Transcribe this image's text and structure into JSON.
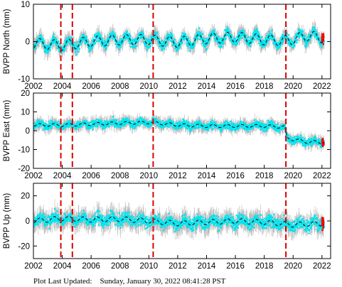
{
  "footer": {
    "label": "Plot Last Updated:",
    "timestamp": "Sunday, January 30, 2022 08:41:28 PST"
  },
  "colors": {
    "scatter": "#00e5f0",
    "error_bars": "#b8b8b8",
    "model": "#000000",
    "event_lines": "#dd0000",
    "recent_points": "#ff0000"
  },
  "chart_data": [
    {
      "type": "scatter",
      "ylabel": "BVPP North (mm)",
      "xlim": [
        2002,
        2022.6
      ],
      "ylim": [
        -10,
        10
      ],
      "yticks": [
        -10,
        0,
        10
      ],
      "xticks": [
        2002,
        2004,
        2006,
        2008,
        2010,
        2012,
        2014,
        2016,
        2018,
        2020,
        2022
      ],
      "show_xticklabels": true,
      "event_lines": [
        2003.9,
        2004.7,
        2010.3,
        2019.5
      ],
      "trend": {
        "intercept": -0.5,
        "slope": 0.03,
        "seasonal_amplitude": 1.4,
        "scatter_sd": 1.6
      },
      "series": [
        {
          "values": [
            [
              2002.0,
              -0.5
            ],
            [
              2004.0,
              -1.0
            ],
            [
              2006.0,
              0.0
            ],
            [
              2008.0,
              0.5
            ],
            [
              2010.0,
              0.5
            ],
            [
              2012.0,
              -0.2
            ],
            [
              2014.0,
              0.8
            ],
            [
              2016.0,
              1.2
            ],
            [
              2018.0,
              0.5
            ],
            [
              2019.5,
              0.2
            ],
            [
              2021.0,
              1.5
            ],
            [
              2022.1,
              1.0
            ]
          ]
        }
      ]
    },
    {
      "type": "scatter",
      "ylabel": "BVPP East (mm)",
      "xlim": [
        2002,
        2022.6
      ],
      "ylim": [
        -20,
        20
      ],
      "yticks": [
        -20,
        -10,
        0,
        10,
        20
      ],
      "xticks": [
        2002,
        2004,
        2006,
        2008,
        2010,
        2012,
        2014,
        2016,
        2018,
        2020,
        2022
      ],
      "show_xticklabels": true,
      "event_lines": [
        2003.9,
        2004.7,
        2010.3,
        2019.5
      ],
      "trend": {
        "intercept": 3.0,
        "slope": 0.0,
        "seasonal_amplitude": 0.8,
        "scatter_sd": 2.5
      },
      "series": [
        {
          "values": [
            [
              2002.0,
              3.0
            ],
            [
              2004.0,
              3.0
            ],
            [
              2006.0,
              3.5
            ],
            [
              2008.0,
              4.0
            ],
            [
              2010.0,
              4.5
            ],
            [
              2012.0,
              3.0
            ],
            [
              2014.0,
              2.5
            ],
            [
              2016.0,
              2.5
            ],
            [
              2018.0,
              2.5
            ],
            [
              2019.4,
              2.0
            ],
            [
              2019.6,
              -4.0
            ],
            [
              2021.0,
              -6.0
            ],
            [
              2022.1,
              -6.0
            ]
          ]
        }
      ]
    },
    {
      "type": "scatter",
      "ylabel": "BVPP Up (mm)",
      "xlim": [
        2002,
        2022.6
      ],
      "ylim": [
        -30,
        30
      ],
      "yticks": [
        -20,
        0,
        20
      ],
      "xticks": [
        2002,
        2004,
        2006,
        2008,
        2010,
        2012,
        2014,
        2016,
        2018,
        2020,
        2022
      ],
      "show_xticklabels": true,
      "event_lines": [
        2003.9,
        2004.7,
        2010.3,
        2019.5
      ],
      "trend": {
        "intercept": 0.0,
        "slope": 0.0,
        "seasonal_amplitude": 2.0,
        "scatter_sd": 6.0
      },
      "series": [
        {
          "values": [
            [
              2002.0,
              0.0
            ],
            [
              2004.0,
              2.0
            ],
            [
              2006.0,
              1.0
            ],
            [
              2008.0,
              1.5
            ],
            [
              2010.0,
              0.0
            ],
            [
              2012.0,
              -2.0
            ],
            [
              2014.0,
              -1.0
            ],
            [
              2016.0,
              0.0
            ],
            [
              2018.0,
              -1.0
            ],
            [
              2020.0,
              -3.0
            ],
            [
              2022.1,
              -2.0
            ]
          ]
        }
      ]
    }
  ]
}
